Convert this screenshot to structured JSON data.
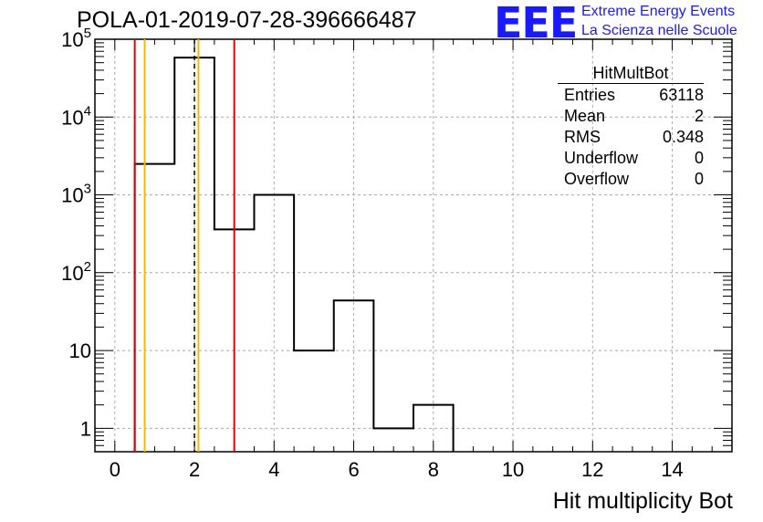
{
  "chart_data": {
    "type": "histogram",
    "title": "POLA-01-2019-07-28-396666487",
    "xlabel": "Hit multiplicity Bot",
    "ylabel": "",
    "xlim": [
      -0.5,
      15.5
    ],
    "ylim": [
      0.5,
      100000
    ],
    "yscale": "log",
    "grid": true,
    "bin_edges": [
      0.5,
      1.5,
      2.5,
      3.5,
      4.5,
      5.5,
      6.5,
      7.5,
      8.5
    ],
    "counts": [
      2500,
      58000,
      360,
      1000,
      10,
      44,
      1,
      2
    ],
    "x_ticks": [
      "0",
      "2",
      "4",
      "6",
      "8",
      "10",
      "12",
      "14"
    ],
    "y_ticks": [
      {
        "mantissa": "1",
        "exp": ""
      },
      {
        "mantissa": "10",
        "exp": ""
      },
      {
        "mantissa": "10",
        "exp": "2"
      },
      {
        "mantissa": "10",
        "exp": "3"
      },
      {
        "mantissa": "10",
        "exp": "4"
      },
      {
        "mantissa": "10",
        "exp": "5"
      }
    ],
    "vertical_lines": [
      {
        "x": 0.5,
        "color": "#e00000",
        "style": "solid"
      },
      {
        "x": 0.75,
        "color": "#f5b800",
        "style": "solid"
      },
      {
        "x": 2.0,
        "color": "#000000",
        "style": "dashed"
      },
      {
        "x": 2.1,
        "color": "#f5b800",
        "style": "solid"
      },
      {
        "x": 3.0,
        "color": "#e00000",
        "style": "solid"
      }
    ]
  },
  "stats_box": {
    "name": "HitMultBot",
    "rows": [
      {
        "key": "Entries",
        "value": "63118"
      },
      {
        "key": "Mean",
        "value": "2"
      },
      {
        "key": "RMS",
        "value": "0.348"
      },
      {
        "key": "Underflow",
        "value": "0"
      },
      {
        "key": "Overflow",
        "value": "0"
      }
    ]
  },
  "logo": {
    "text": "EEE",
    "line1": "Extreme Energy Events",
    "line2": "La Scienza nelle Scuole",
    "color": "#1a1aff"
  }
}
